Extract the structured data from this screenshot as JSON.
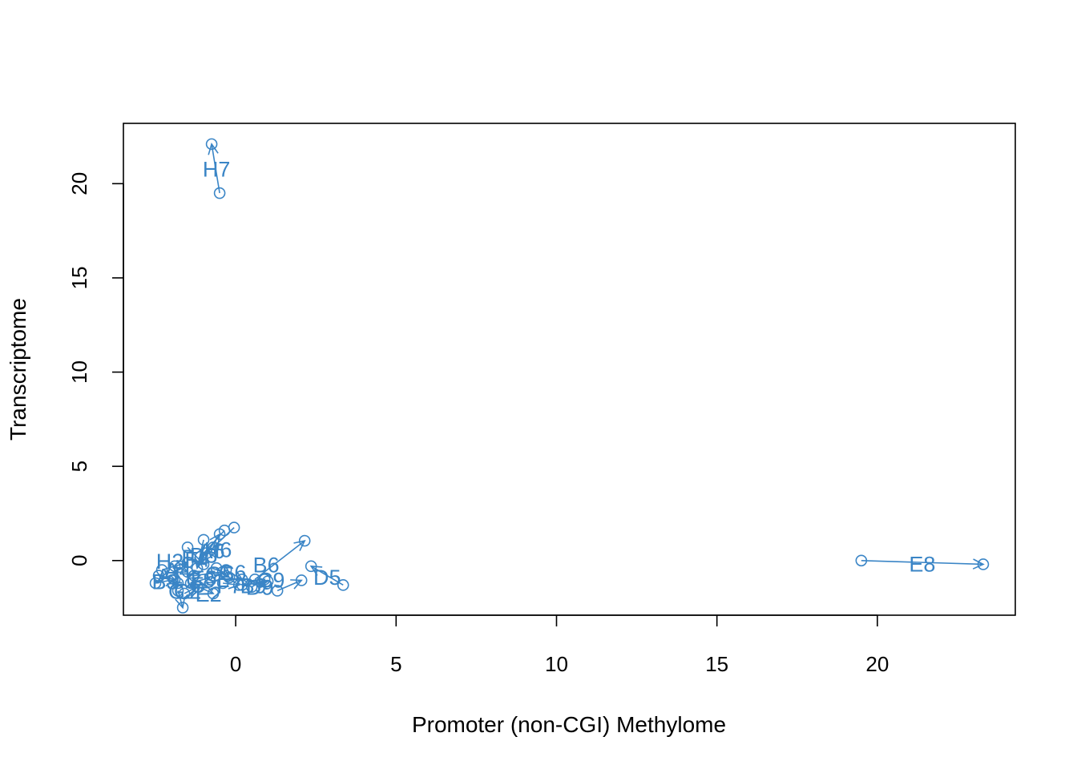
{
  "chart_data": {
    "type": "scatter",
    "title": "",
    "xlabel": "Promoter (non-CGI) Methylome",
    "ylabel": "Transcriptome",
    "xlim": [
      -3.5,
      24.3
    ],
    "ylim": [
      -2.9,
      23.2
    ],
    "xticks": [
      0,
      5,
      10,
      15,
      20
    ],
    "yticks": [
      0,
      5,
      10,
      15,
      20
    ],
    "grid": false,
    "legend": "none",
    "colors": {
      "series": "#3a85c6",
      "axis": "#000000"
    },
    "pairs": [
      {
        "label": "H7",
        "from": [
          -0.5,
          19.5
        ],
        "to": [
          -0.75,
          22.1
        ],
        "label_pos": [
          -0.6,
          20.8
        ]
      },
      {
        "label": "E8",
        "from": [
          19.5,
          0.0
        ],
        "to": [
          23.3,
          -0.2
        ],
        "label_pos": [
          21.4,
          -0.15
        ]
      },
      {
        "label": "D5",
        "from": [
          3.35,
          -1.3
        ],
        "to": [
          2.35,
          -0.3
        ],
        "label_pos": [
          2.85,
          -0.85
        ]
      },
      {
        "label": "B6",
        "from": [
          0.6,
          -1.0
        ],
        "to": [
          2.15,
          1.05
        ],
        "label_pos": [
          0.95,
          -0.2
        ]
      },
      {
        "label": "C9",
        "from": [
          1.3,
          -1.6
        ],
        "to": [
          2.05,
          -1.05
        ],
        "label_pos": [
          1.1,
          -1.0
        ]
      },
      {
        "label": "H6",
        "from": [
          -0.35,
          1.6
        ],
        "to": [
          -1.1,
          0.2
        ],
        "label_pos": [
          -0.55,
          0.6
        ]
      },
      {
        "label": "A6",
        "from": [
          -0.05,
          1.75
        ],
        "to": [
          -0.7,
          0.7
        ],
        "label_pos": [
          -0.75,
          0.55
        ]
      },
      {
        "label": "D3",
        "from": [
          -0.9,
          0.4
        ],
        "to": [
          -0.5,
          1.4
        ],
        "label_pos": [
          -1.0,
          0.3
        ]
      },
      {
        "label": "C6",
        "from": [
          -0.3,
          -0.5
        ],
        "to": [
          0.2,
          -1.0
        ],
        "label_pos": [
          -0.1,
          -0.6
        ]
      },
      {
        "label": "G2",
        "from": [
          -1.8,
          -1.6
        ],
        "to": [
          -1.65,
          -2.5
        ],
        "label_pos": [
          -1.65,
          -1.6
        ]
      },
      {
        "label": "E2",
        "from": [
          -1.15,
          -1.4
        ],
        "to": [
          -0.7,
          -1.75
        ],
        "label_pos": [
          -0.85,
          -1.75
        ]
      },
      {
        "label": "D9",
        "from": [
          0.2,
          -1.3
        ],
        "to": [
          1.0,
          -1.1
        ],
        "label_pos": [
          0.75,
          -1.4
        ]
      },
      {
        "label": "H2",
        "from": [
          -2.3,
          -0.5
        ],
        "to": [
          -1.5,
          -0.1
        ],
        "label_pos": [
          -2.05,
          0.0
        ]
      },
      {
        "label": "F1",
        "from": [
          -1.5,
          0.7
        ],
        "to": [
          -1.0,
          -0.2
        ],
        "label_pos": [
          -1.3,
          0.2
        ]
      },
      {
        "label": "F4",
        "from": [
          -1.0,
          1.1
        ],
        "to": [
          -1.2,
          -0.4
        ],
        "label_pos": [
          -1.2,
          0.1
        ]
      },
      {
        "label": "A1",
        "from": [
          -2.4,
          -0.8
        ],
        "to": [
          -1.8,
          -1.2
        ],
        "label_pos": [
          -2.05,
          -0.8
        ]
      },
      {
        "label": "B3",
        "from": [
          -2.5,
          -1.2
        ],
        "to": [
          -1.9,
          -1.0
        ],
        "label_pos": [
          -2.2,
          -1.1
        ]
      },
      {
        "label": "C2",
        "from": [
          -1.6,
          -1.75
        ],
        "to": [
          -1.2,
          -1.4
        ],
        "label_pos": [
          -1.5,
          -1.6
        ]
      },
      {
        "label": "G5",
        "from": [
          -0.6,
          -0.4
        ],
        "to": [
          -0.2,
          -0.9
        ],
        "label_pos": [
          -0.5,
          -0.7
        ]
      },
      {
        "label": "E5",
        "from": [
          -1.3,
          -0.8
        ],
        "to": [
          -0.4,
          -0.6
        ],
        "label_pos": [
          -1.0,
          -0.9
        ]
      },
      {
        "label": "B9",
        "from": [
          0.5,
          -1.4
        ],
        "to": [
          0.9,
          -1.0
        ],
        "label_pos": [
          0.55,
          -1.3
        ]
      },
      {
        "label": "F7",
        "from": [
          -0.4,
          -1.2
        ],
        "to": [
          0.1,
          -1.3
        ],
        "label_pos": [
          -0.2,
          -1.3
        ]
      },
      {
        "label": "A4",
        "from": [
          -1.9,
          -0.3
        ],
        "to": [
          -1.5,
          -0.6
        ],
        "label_pos": [
          -1.8,
          -0.5
        ]
      },
      {
        "label": "G8",
        "from": [
          -0.8,
          -0.9
        ],
        "to": [
          -1.4,
          -1.2
        ],
        "label_pos": [
          -1.1,
          -1.0
        ]
      }
    ]
  }
}
